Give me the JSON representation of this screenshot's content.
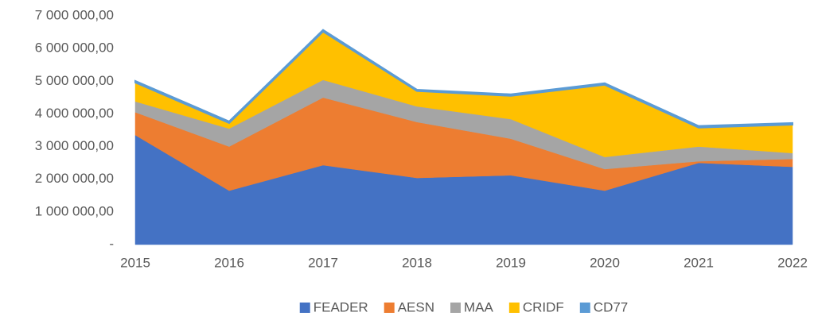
{
  "chart_data": {
    "type": "stacked_area",
    "categories": [
      "2015",
      "2016",
      "2017",
      "2018",
      "2019",
      "2020",
      "2021",
      "2022"
    ],
    "series": [
      {
        "name": "FEADER",
        "color": "#4472C4",
        "values": [
          3350000,
          1650000,
          2430000,
          2040000,
          2120000,
          1650000,
          2500000,
          2380000
        ]
      },
      {
        "name": "AESN",
        "color": "#ED7D31",
        "values": [
          700000,
          1350000,
          2070000,
          1710000,
          1120000,
          660000,
          50000,
          240000
        ]
      },
      {
        "name": "MAA",
        "color": "#A5A5A5",
        "values": [
          330000,
          550000,
          540000,
          480000,
          600000,
          370000,
          450000,
          180000
        ]
      },
      {
        "name": "CRIDF",
        "color": "#FFC000",
        "values": [
          580000,
          170000,
          1480000,
          470000,
          710000,
          2210000,
          580000,
          870000
        ]
      },
      {
        "name": "CD77",
        "color": "#5B9BD5",
        "values": [
          50000,
          50000,
          50000,
          40000,
          50000,
          50000,
          50000,
          50000
        ]
      }
    ],
    "ylim": [
      0,
      7000000
    ],
    "yticks": [
      {
        "value": 0,
        "label": "-"
      },
      {
        "value": 1000000,
        "label": "1 000 000,00"
      },
      {
        "value": 2000000,
        "label": "2 000 000,00"
      },
      {
        "value": 3000000,
        "label": "3 000 000,00"
      },
      {
        "value": 4000000,
        "label": "4 000 000,00"
      },
      {
        "value": 5000000,
        "label": "5 000 000,00"
      },
      {
        "value": 6000000,
        "label": "6 000 000,00"
      },
      {
        "value": 7000000,
        "label": "7 000 000,00"
      }
    ],
    "legend": "bottom"
  }
}
